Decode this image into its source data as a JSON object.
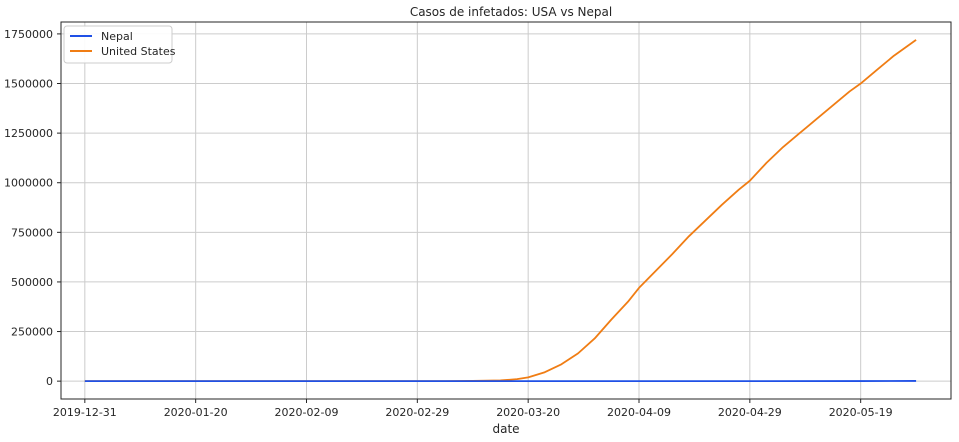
{
  "chart_data": {
    "type": "line",
    "title": "Casos de infetados: USA vs Nepal",
    "xlabel": "date",
    "ylabel": "",
    "x_axis": {
      "type": "date",
      "range": [
        "2019-12-31",
        "2020-05-31"
      ],
      "ticks": [
        "2019-12-31",
        "2020-01-20",
        "2020-02-09",
        "2020-02-29",
        "2020-03-20",
        "2020-04-09",
        "2020-04-29",
        "2020-05-19"
      ]
    },
    "y_axis": {
      "ylim": [
        -90000,
        1810000
      ],
      "ticks": [
        0,
        250000,
        500000,
        750000,
        1000000,
        1250000,
        1500000,
        1750000
      ]
    },
    "grid": true,
    "legend_position": "top-left",
    "series": [
      {
        "name": "Nepal",
        "color": "#1f50e6",
        "x": [
          "2019-12-31",
          "2020-03-20",
          "2020-04-09",
          "2020-04-29",
          "2020-05-19",
          "2020-05-29"
        ],
        "values": [
          0,
          1,
          9,
          57,
          457,
          1042
        ]
      },
      {
        "name": "United States",
        "color": "#f07d14",
        "x": [
          "2019-12-31",
          "2020-03-05",
          "2020-03-10",
          "2020-03-15",
          "2020-03-18",
          "2020-03-20",
          "2020-03-23",
          "2020-03-26",
          "2020-03-29",
          "2020-04-01",
          "2020-04-04",
          "2020-04-07",
          "2020-04-09",
          "2020-04-12",
          "2020-04-15",
          "2020-04-18",
          "2020-04-21",
          "2020-04-24",
          "2020-04-27",
          "2020-04-29",
          "2020-05-02",
          "2020-05-05",
          "2020-05-08",
          "2020-05-11",
          "2020-05-14",
          "2020-05-17",
          "2020-05-19",
          "2020-05-22",
          "2020-05-25",
          "2020-05-29"
        ],
        "values": [
          0,
          200,
          1000,
          3500,
          10000,
          19000,
          45000,
          85000,
          140000,
          215000,
          310000,
          400000,
          470000,
          555000,
          640000,
          730000,
          810000,
          890000,
          965000,
          1010000,
          1100000,
          1180000,
          1250000,
          1320000,
          1390000,
          1460000,
          1500000,
          1570000,
          1640000,
          1720000
        ]
      }
    ]
  }
}
